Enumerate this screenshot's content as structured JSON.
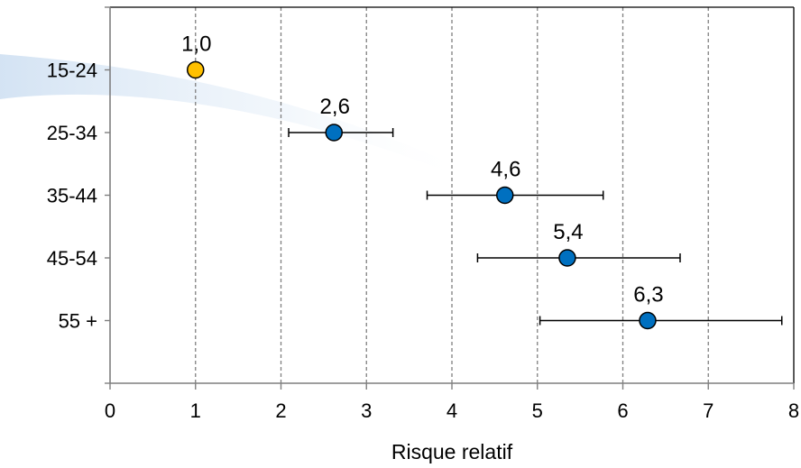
{
  "chart_data": {
    "type": "scatter",
    "orientation": "horizontal-forest-plot",
    "xlabel": "Risque relatif",
    "ylabel": "",
    "xlim": [
      0,
      8
    ],
    "xticks": [
      "0",
      "1",
      "2",
      "3",
      "4",
      "5",
      "6",
      "7",
      "8"
    ],
    "grid": "vertical dashed",
    "categories": [
      "15-24",
      "25-34",
      "35-44",
      "45-54",
      "55 +"
    ],
    "values": [
      1.0,
      2.62,
      4.62,
      5.35,
      6.29
    ],
    "value_labels": [
      "1,0",
      "2,6",
      "4,6",
      "5,4",
      "6,3"
    ],
    "ci_low": [
      null,
      2.09,
      3.71,
      4.3,
      5.03
    ],
    "ci_high": [
      null,
      3.31,
      5.77,
      6.67,
      7.86
    ],
    "reference_index": 0,
    "colors": {
      "reference": "#FFC000",
      "point": "#0070C0",
      "grid": "#7f7f7f",
      "axis": "#7f7f7f"
    }
  }
}
